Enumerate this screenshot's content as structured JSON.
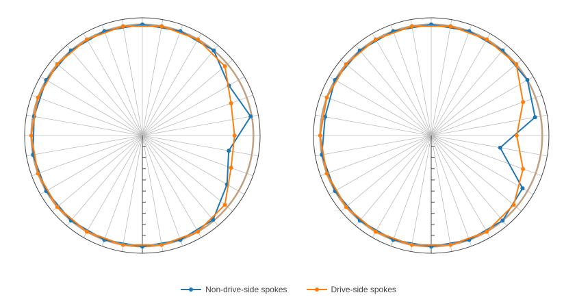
{
  "chart_data": [
    {
      "type": "polar-line",
      "title": "",
      "angular_unit": "degrees",
      "theta": [
        0,
        10,
        20,
        30,
        40,
        50,
        60,
        70,
        80,
        90,
        100,
        110,
        120,
        130,
        140,
        150,
        160,
        170,
        180,
        190,
        200,
        210,
        220,
        230,
        240,
        250,
        260,
        270,
        280,
        290,
        300,
        310,
        320,
        330,
        340,
        350
      ],
      "series": [
        {
          "name": "Non-drive-side spokes",
          "r": [
            1.0,
            null,
            1.0,
            null,
            1.0,
            null,
            0.9,
            null,
            0.99,
            null,
            0.79,
            null,
            0.88,
            null,
            0.99,
            null,
            1.0,
            null,
            1.0,
            null,
            1.0,
            null,
            1.0,
            null,
            1.0,
            null,
            1.0,
            null,
            0.99,
            null,
            1.0,
            null,
            1.0,
            null,
            1.0,
            null
          ]
        },
        {
          "name": "Drive-side spokes",
          "r": [
            null,
            1.0,
            null,
            1.0,
            null,
            0.97,
            null,
            0.85,
            null,
            0.83,
            null,
            0.85,
            null,
            0.97,
            null,
            1.0,
            null,
            1.0,
            null,
            1.0,
            null,
            1.0,
            null,
            1.0,
            null,
            1.0,
            null,
            1.0,
            null,
            1.0,
            null,
            1.0,
            null,
            1.0,
            null,
            1.0
          ]
        }
      ],
      "reference_circle": 1.0
    },
    {
      "type": "polar-line",
      "title": "",
      "angular_unit": "degrees",
      "theta": [
        0,
        10,
        20,
        30,
        40,
        50,
        60,
        70,
        80,
        90,
        100,
        110,
        120,
        130,
        140,
        150,
        160,
        170,
        180,
        190,
        200,
        210,
        220,
        230,
        240,
        250,
        260,
        270,
        280,
        290,
        300,
        310,
        320,
        330,
        340,
        350
      ],
      "series": [
        {
          "name": "Non-drive-side spokes",
          "r": [
            1.0,
            null,
            1.0,
            null,
            1.0,
            null,
            1.0,
            null,
            0.95,
            null,
            0.63,
            null,
            0.95,
            null,
            1.0,
            null,
            1.0,
            null,
            1.0,
            null,
            1.0,
            null,
            1.0,
            null,
            1.0,
            null,
            1.0,
            null,
            0.97,
            null,
            1.0,
            null,
            1.0,
            null,
            1.0,
            null
          ]
        },
        {
          "name": "Drive-side spokes",
          "r": [
            null,
            1.0,
            null,
            1.0,
            null,
            1.0,
            null,
            0.88,
            null,
            0.77,
            null,
            0.88,
            null,
            0.97,
            null,
            1.0,
            null,
            1.0,
            null,
            1.0,
            null,
            1.0,
            null,
            1.0,
            null,
            1.0,
            null,
            1.0,
            null,
            1.0,
            null,
            1.0,
            null,
            1.0,
            null,
            1.0
          ]
        }
      ],
      "reference_circle": 1.0
    }
  ],
  "legend": {
    "placement": "bottom-center",
    "items": [
      {
        "label": "Non-drive-side spokes",
        "color": "#1f77b4"
      },
      {
        "label": "Drive-side spokes",
        "color": "#ff7f0e"
      }
    ]
  },
  "colors": {
    "reference_circle": "#c0a080",
    "grid": "#bbbbbb",
    "axis": "#444444"
  }
}
